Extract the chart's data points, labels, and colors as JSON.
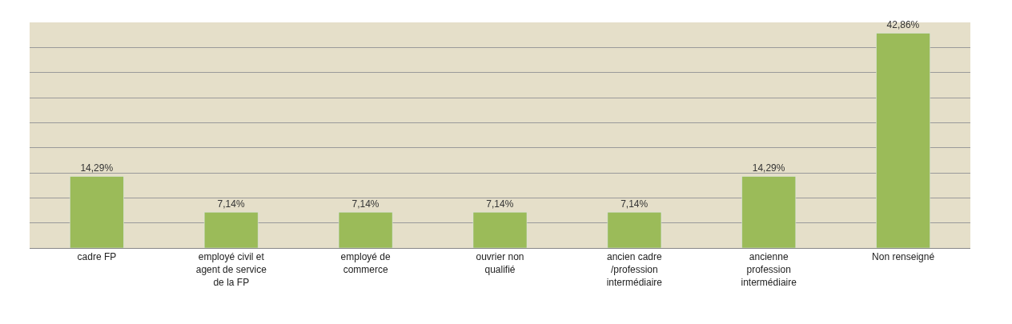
{
  "chart_data": {
    "type": "bar",
    "categories": [
      "cadre FP",
      "employé civil et agent de service de la FP",
      "employé de commerce",
      "ouvrier non qualifié",
      "ancien cadre /profession intermédiaire",
      "ancienne profession intermédiaire",
      "Non renseigné"
    ],
    "values": [
      14.29,
      7.14,
      7.14,
      7.14,
      7.14,
      14.29,
      42.86
    ],
    "value_labels": [
      "14,29%",
      "7,14%",
      "7,14%",
      "7,14%",
      "7,14%",
      "14,29%",
      "42,86%"
    ],
    "color": "#9bbb59",
    "ylim": [
      0,
      45
    ],
    "yticks": [
      {
        "value": 0,
        "label": null
      },
      {
        "value": 5,
        "label": null
      },
      {
        "value": 10,
        "label": null
      },
      {
        "value": 15,
        "label": null
      },
      {
        "value": 20,
        "label": null
      },
      {
        "value": 25,
        "label": null
      },
      {
        "value": 30,
        "label": null
      },
      {
        "value": 35,
        "label": null
      },
      {
        "value": 40,
        "label": null
      },
      {
        "value": 45,
        "label": null
      }
    ],
    "grid": "y",
    "legend": false
  }
}
